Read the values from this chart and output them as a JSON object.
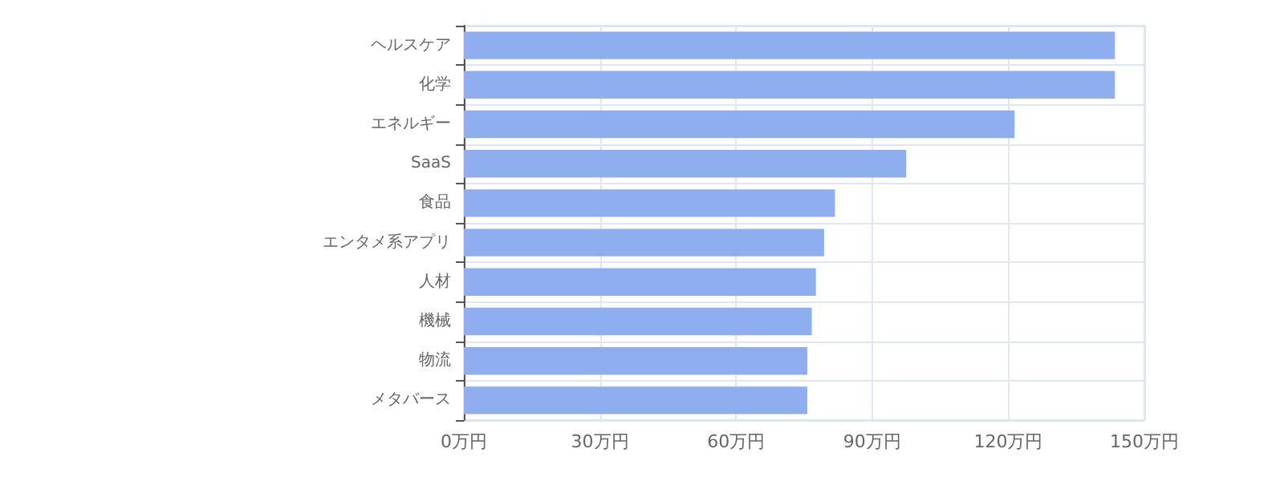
{
  "chart_data": {
    "type": "bar",
    "orientation": "horizontal",
    "categories": [
      "ヘルスケア",
      "化学",
      "エネルギー",
      "SaaS",
      "食品",
      "エンタメ系アプリ",
      "人材",
      "機械",
      "物流",
      "メタバース"
    ],
    "values": [
      143.5,
      143.5,
      121.4,
      97.5,
      81.8,
      79.4,
      77.6,
      76.7,
      75.7,
      75.7
    ],
    "color": "#8eaef0",
    "xlim": [
      0,
      150
    ],
    "xticks": [
      {
        "value": 0,
        "label": "0万円"
      },
      {
        "value": 30,
        "label": "30万円"
      },
      {
        "value": 60,
        "label": "60万円"
      },
      {
        "value": 90,
        "label": "90万円"
      },
      {
        "value": 120,
        "label": "120万円"
      },
      {
        "value": 150,
        "label": "150万円"
      }
    ],
    "grid": true
  }
}
